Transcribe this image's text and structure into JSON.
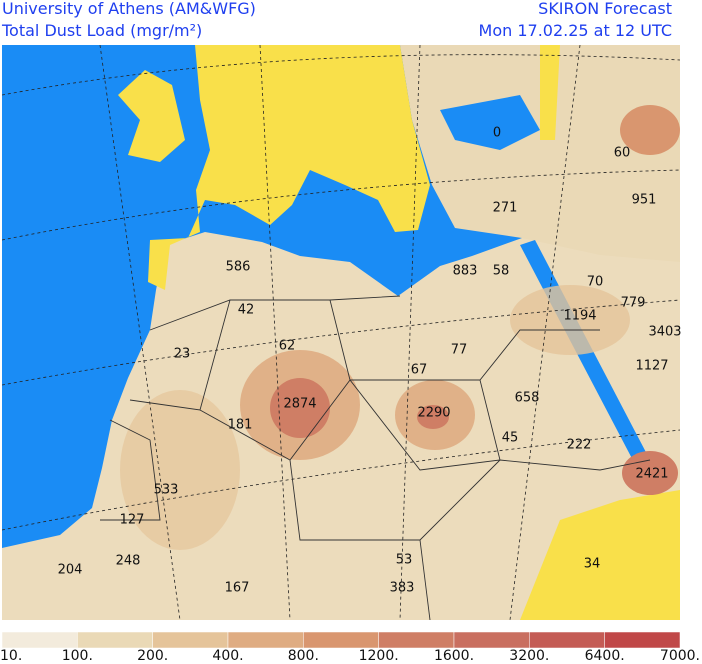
{
  "header": {
    "institution": "University of Athens (AM&WFG)",
    "field": "Total Dust Load (mgr/m²)",
    "product": "SKIRON Forecast",
    "valid_time": "Mon 17.02.25 at 12 UTC"
  },
  "map_labels": [
    "0",
    "60",
    "951",
    "271",
    "586",
    "883",
    "58",
    "70",
    "779",
    "1194",
    "3403",
    "42",
    "62",
    "77",
    "23",
    "1127",
    "67",
    "2874",
    "2290",
    "658",
    "181",
    "45",
    "222",
    "2421",
    "533",
    "127",
    "248",
    "204",
    "53",
    "34",
    "167",
    "383"
  ],
  "colorbar": {
    "labels": [
      "10.",
      "100.",
      "200.",
      "400.",
      "800.",
      "1200.",
      "1600.",
      "3200.",
      "6400.",
      "7000."
    ]
  }
}
